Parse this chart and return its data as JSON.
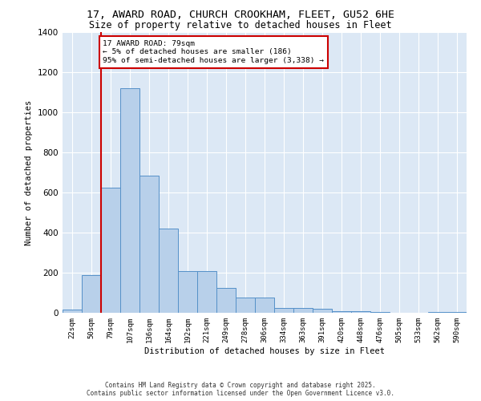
{
  "title_line1": "17, AWARD ROAD, CHURCH CROOKHAM, FLEET, GU52 6HE",
  "title_line2": "Size of property relative to detached houses in Fleet",
  "xlabel": "Distribution of detached houses by size in Fleet",
  "ylabel": "Number of detached properties",
  "categories": [
    "22sqm",
    "50sqm",
    "79sqm",
    "107sqm",
    "136sqm",
    "164sqm",
    "192sqm",
    "221sqm",
    "249sqm",
    "278sqm",
    "306sqm",
    "334sqm",
    "363sqm",
    "391sqm",
    "420sqm",
    "448sqm",
    "476sqm",
    "505sqm",
    "533sqm",
    "562sqm",
    "590sqm"
  ],
  "values": [
    15,
    190,
    625,
    1120,
    685,
    420,
    210,
    210,
    125,
    75,
    75,
    25,
    25,
    20,
    10,
    10,
    5,
    0,
    0,
    5,
    5
  ],
  "bar_color": "#b8d0ea",
  "bar_edge_color": "#5590c8",
  "background_color": "#dce8f5",
  "grid_color": "#ffffff",
  "vline_color": "#cc0000",
  "vline_index": 2,
  "annotation_text": "17 AWARD ROAD: 79sqm\n← 5% of detached houses are smaller (186)\n95% of semi-detached houses are larger (3,338) →",
  "annotation_box_facecolor": "#ffffff",
  "annotation_box_edge": "#cc0000",
  "ylim": [
    0,
    1400
  ],
  "yticks": [
    0,
    200,
    400,
    600,
    800,
    1000,
    1200,
    1400
  ],
  "fig_facecolor": "#ffffff",
  "footnote_line1": "Contains HM Land Registry data © Crown copyright and database right 2025.",
  "footnote_line2": "Contains public sector information licensed under the Open Government Licence v3.0."
}
